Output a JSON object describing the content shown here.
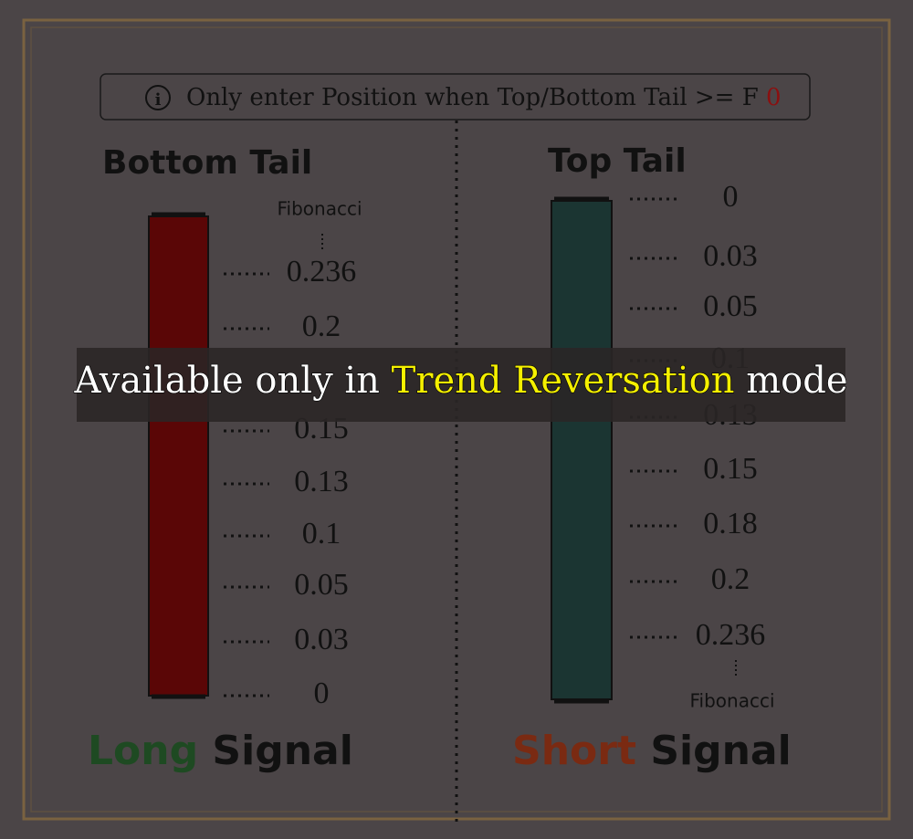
{
  "notice": {
    "text": "Only enter Position when Top/Bottom Tail >= F",
    "value": "0"
  },
  "left": {
    "title": "Bottom Tail",
    "fib_label": "Fibonacci",
    "levels": [
      "0.236",
      "0.2",
      "0.15",
      "0.13",
      "0.1",
      "0.05",
      "0.03",
      "0"
    ],
    "signal": {
      "word": "Long",
      "suffix": "Signal"
    }
  },
  "right": {
    "title": "Top Tail",
    "fib_label": "Fibonacci",
    "levels": [
      "0",
      "0.03",
      "0.05",
      "0.1",
      "0.13",
      "0.15",
      "0.18",
      "0.2",
      "0.236"
    ],
    "signal": {
      "word": "Short",
      "suffix": "Signal"
    }
  },
  "banner": {
    "before": "Available only in",
    "highlight": "Trend Reversation",
    "after": "mode"
  }
}
